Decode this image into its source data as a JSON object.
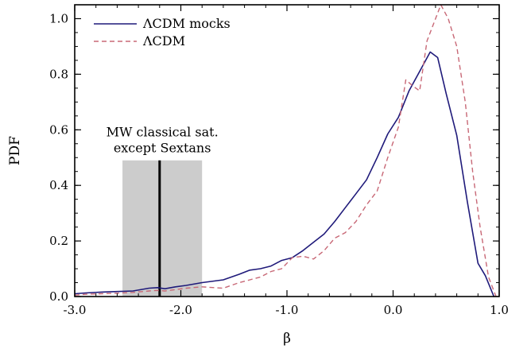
{
  "chart_data": {
    "type": "line",
    "xlabel": "β",
    "ylabel": "PDF",
    "xlim": [
      -3.0,
      1.0
    ],
    "ylim": [
      0.0,
      1.05
    ],
    "x_ticks": [
      "-3.0",
      "-2.0",
      "-1.0",
      "0.0",
      "1.0"
    ],
    "y_ticks": [
      "0.0",
      "0.2",
      "0.4",
      "0.6",
      "0.8",
      "1.0"
    ],
    "grid": false,
    "legend_position": "top-left",
    "series": [
      {
        "name": "ΛCDM mocks",
        "style": "solid",
        "color": "#1f1a7a",
        "x": [
          -3.0,
          -2.9,
          -2.75,
          -2.6,
          -2.45,
          -2.3,
          -2.22,
          -2.15,
          -2.05,
          -1.95,
          -1.8,
          -1.6,
          -1.45,
          -1.35,
          -1.25,
          -1.15,
          -1.05,
          -0.95,
          -0.85,
          -0.75,
          -0.65,
          -0.55,
          -0.45,
          -0.35,
          -0.25,
          -0.15,
          -0.05,
          0.05,
          0.15,
          0.25,
          0.35,
          0.42,
          0.5,
          0.6,
          0.7,
          0.8,
          0.87,
          0.95
        ],
        "y": [
          0.01,
          0.013,
          0.016,
          0.018,
          0.02,
          0.03,
          0.032,
          0.028,
          0.035,
          0.04,
          0.05,
          0.06,
          0.08,
          0.095,
          0.1,
          0.11,
          0.13,
          0.14,
          0.165,
          0.195,
          0.225,
          0.27,
          0.32,
          0.37,
          0.42,
          0.5,
          0.585,
          0.645,
          0.74,
          0.81,
          0.88,
          0.86,
          0.73,
          0.58,
          0.34,
          0.12,
          0.075,
          0.0
        ]
      },
      {
        "name": "ΛCDM",
        "style": "dashed",
        "color": "#c86876",
        "x": [
          -3.0,
          -2.9,
          -2.75,
          -2.6,
          -2.45,
          -2.3,
          -2.22,
          -2.15,
          -2.05,
          -1.95,
          -1.8,
          -1.6,
          -1.45,
          -1.35,
          -1.25,
          -1.15,
          -1.05,
          -0.95,
          -0.85,
          -0.75,
          -0.65,
          -0.55,
          -0.45,
          -0.35,
          -0.25,
          -0.15,
          -0.05,
          0.05,
          0.12,
          0.18,
          0.25,
          0.32,
          0.4,
          0.45,
          0.52,
          0.6,
          0.68,
          0.75,
          0.82,
          0.9,
          0.97
        ],
        "y": [
          0.005,
          0.008,
          0.01,
          0.012,
          0.015,
          0.02,
          0.022,
          0.02,
          0.025,
          0.03,
          0.035,
          0.03,
          0.05,
          0.06,
          0.07,
          0.09,
          0.1,
          0.14,
          0.145,
          0.135,
          0.165,
          0.21,
          0.23,
          0.27,
          0.33,
          0.38,
          0.5,
          0.61,
          0.78,
          0.76,
          0.74,
          0.92,
          1.0,
          1.05,
          1.0,
          0.9,
          0.7,
          0.45,
          0.25,
          0.07,
          0.0
        ]
      }
    ],
    "band": {
      "x_range": [
        -2.55,
        -1.8
      ],
      "y_top": 0.49,
      "line_x": -2.2,
      "color": "#cccccc"
    },
    "annotation": [
      "MW classical sat.",
      "except Sextans"
    ]
  }
}
